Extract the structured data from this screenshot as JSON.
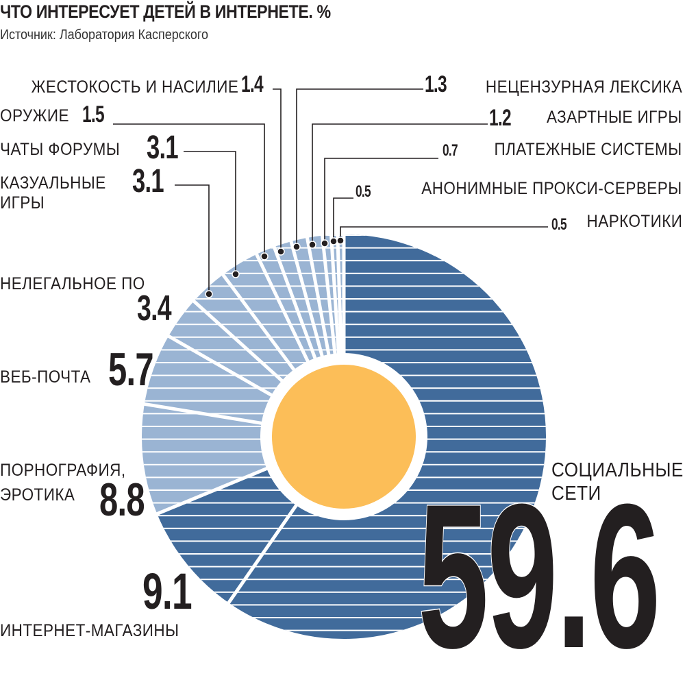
{
  "header": {
    "title": "ЧТО ИНТЕРЕСУЕТ ДЕТЕЙ В ИНТЕРНЕТЕ. %",
    "subtitle": "Источник: Лаборатория Касперского"
  },
  "labels": {
    "violence": {
      "name": "ЖЕСТОКОСТЬ И НАСИЛИЕ",
      "value": "1.4"
    },
    "weapons": {
      "name": "ОРУЖИЕ",
      "value": "1.5"
    },
    "chats": {
      "name": "ЧАТЫ ФОРУМЫ",
      "value": "3.1"
    },
    "casual_line1": {
      "name": "КАЗУАЛЬНЫЕ",
      "value": "3.1"
    },
    "casual_line2": {
      "name": "ИГРЫ"
    },
    "illegal_sw": {
      "name": "НЕЛЕГАЛЬНОЕ ПО",
      "value": "3.4"
    },
    "webmail": {
      "name": "ВЕБ-ПОЧТА",
      "value": "5.7"
    },
    "porn_line1": {
      "name": "ПОРНОГРАФИЯ,"
    },
    "porn_line2": {
      "name": "ЭРОТИКА",
      "value": "8.8"
    },
    "shops": {
      "name": "ИНТЕРНЕТ-МАГАЗИНЫ",
      "value": "9.1"
    },
    "profanity": {
      "name": "НЕЦЕНЗУРНАЯ ЛЕКСИКА",
      "value": "1.3"
    },
    "gambling": {
      "name": "АЗАРТНЫЕ ИГРЫ",
      "value": "1.2"
    },
    "payments": {
      "name": "ПЛАТЕЖНЫЕ СИСТЕМЫ",
      "value": "0.7"
    },
    "proxies": {
      "name": "АНОНИМНЫЕ ПРОКСИ-СЕРВЕРЫ",
      "value": "0.5"
    },
    "drugs": {
      "name": "НАРКОТИКИ",
      "value": "0.5"
    },
    "social_line1": {
      "name": "СОЦИАЛЬНЫЕ"
    },
    "social_line2": {
      "name": "СЕТИ",
      "value": "59.6"
    }
  },
  "colors": {
    "social": "#416b9b",
    "shops": "#416b9b",
    "others": "#9ab4d3",
    "center": "#fcbe58",
    "text": "#231f20"
  },
  "chart_data": {
    "type": "pie",
    "variant": "donut",
    "title": "ЧТО ИНТЕРЕСУЕТ ДЕТЕЙ В ИНТЕРНЕТЕ. %",
    "subtitle": "Источник: Лаборатория Касперского",
    "unit": "%",
    "categories": [
      "Социальные сети",
      "Интернет-магазины",
      "Порнография, эротика",
      "Веб-почта",
      "Нелегальное ПО",
      "Казуальные игры",
      "Чаты форумы",
      "Оружие",
      "Жестокость и насилие",
      "Нецензурная лексика",
      "Азартные игры",
      "Платежные системы",
      "Анонимные прокси-серверы",
      "Наркотики"
    ],
    "values": [
      59.6,
      9.1,
      8.8,
      5.7,
      3.4,
      3.1,
      3.1,
      1.5,
      1.4,
      1.3,
      1.2,
      0.7,
      0.5,
      0.5
    ],
    "legend": "none (direct labels with leader lines)"
  }
}
